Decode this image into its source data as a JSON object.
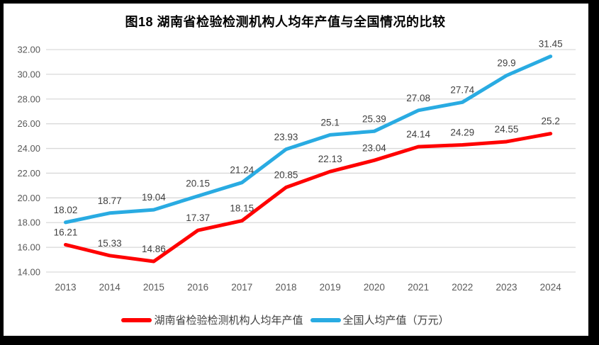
{
  "title": "图18 湖南省检验检测机构人均年产值与全国情况的比较",
  "chart_data": {
    "type": "line",
    "title": "图18 湖南省检验检测机构人均年产值与全国情况的比较",
    "categories": [
      "2013",
      "2014",
      "2015",
      "2016",
      "2017",
      "2018",
      "2019",
      "2020",
      "2021",
      "2022",
      "2023",
      "2024"
    ],
    "series": [
      {
        "name": "湖南省检验检测机构人均年产值",
        "color": "#ff0000",
        "values": [
          16.21,
          15.33,
          14.86,
          17.37,
          18.15,
          20.85,
          22.13,
          23.04,
          24.14,
          24.29,
          24.55,
          25.2
        ]
      },
      {
        "name": "全国人均产值（万元）",
        "color": "#29abe2",
        "values": [
          18.02,
          18.77,
          19.04,
          20.15,
          21.24,
          23.93,
          25.1,
          25.39,
          27.08,
          27.74,
          29.9,
          31.45
        ]
      }
    ],
    "xlabel": "",
    "ylabel": "",
    "ylim": [
      14,
      32
    ],
    "ytick_step": 2,
    "ytick_labels": [
      "14.00",
      "16.00",
      "18.00",
      "20.00",
      "22.00",
      "24.00",
      "26.00",
      "28.00",
      "30.00",
      "32.00"
    ],
    "grid": true,
    "gridline_color": "#d9d9d9",
    "axis_label_color": "#595959",
    "data_label_color": "#3f3f3f",
    "legend_position": "bottom",
    "data_labels_shown": true
  }
}
